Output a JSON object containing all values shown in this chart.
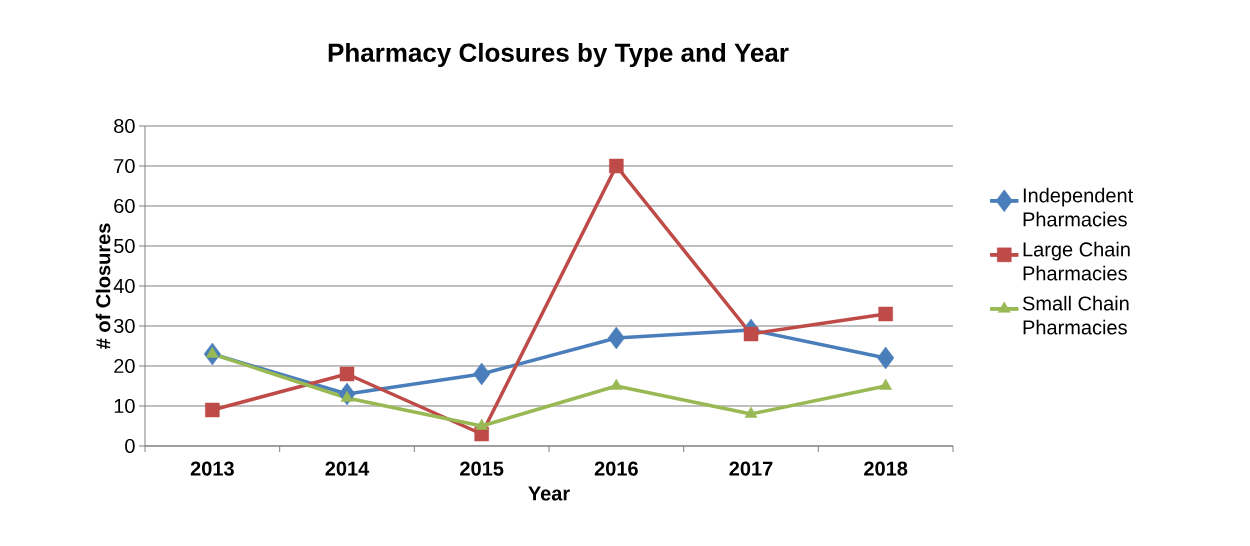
{
  "chart_data": {
    "type": "line",
    "title": "Pharmacy Closures by Type and Year",
    "xlabel": "Year",
    "ylabel": "# of Closures",
    "categories": [
      "2013",
      "2014",
      "2015",
      "2016",
      "2017",
      "2018"
    ],
    "series": [
      {
        "name": "Independent Pharmacies",
        "color": "#4a7ebb",
        "marker": "diamond",
        "values": [
          23,
          13,
          18,
          27,
          29,
          22
        ]
      },
      {
        "name": "Large Chain Pharmacies",
        "color": "#be4b48",
        "marker": "square",
        "values": [
          9,
          18,
          3,
          70,
          28,
          33
        ]
      },
      {
        "name": "Small Chain Pharmacies",
        "color": "#98b954",
        "marker": "triangle",
        "values": [
          23,
          12,
          5,
          15,
          8,
          15
        ]
      }
    ],
    "ylim": [
      0,
      80
    ],
    "yticks": [
      0,
      10,
      20,
      30,
      40,
      50,
      60,
      70,
      80
    ],
    "grid": "y",
    "legend": "right",
    "line_style": "solid"
  }
}
